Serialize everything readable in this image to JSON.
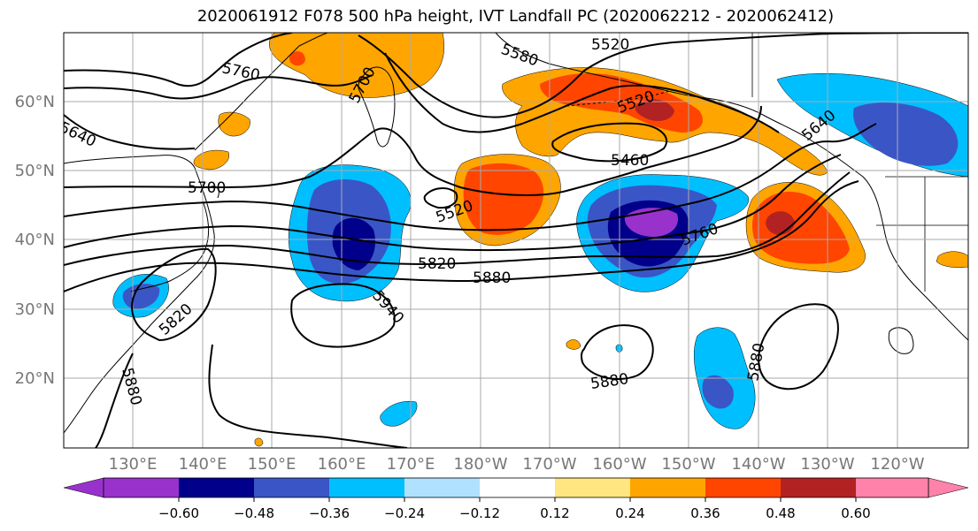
{
  "title": "2020061912 F078 500 hPa height, IVT Landfall PC (2020062212 - 2020062412)",
  "map": {
    "lat_labels": [
      "60°N",
      "50°N",
      "40°N",
      "30°N",
      "20°N"
    ],
    "lon_labels": [
      "130°E",
      "140°E",
      "150°E",
      "160°E",
      "170°E",
      "180°W",
      "170°W",
      "160°W",
      "150°W",
      "140°W",
      "130°W",
      "120°W"
    ],
    "contour_labels": [
      "5520",
      "5580",
      "5760",
      "5700",
      "5640",
      "5460",
      "5520",
      "5640",
      "5700",
      "5520",
      "5760",
      "5820",
      "5880",
      "5940",
      "5820",
      "5880",
      "5880",
      "5880"
    ]
  },
  "colorbar": {
    "colors": [
      "#9932cc",
      "#00008b",
      "#3a56c6",
      "#00bfff",
      "#b0e2ff",
      "#ffffff",
      "#ffe680",
      "#ffa500",
      "#ff4500",
      "#b22222",
      "#ff82ab"
    ],
    "tick_labels": [
      "−0.60",
      "−0.48",
      "−0.36",
      "−0.24",
      "−0.12",
      "0.12",
      "0.24",
      "0.36",
      "0.48",
      "0.60"
    ]
  }
}
